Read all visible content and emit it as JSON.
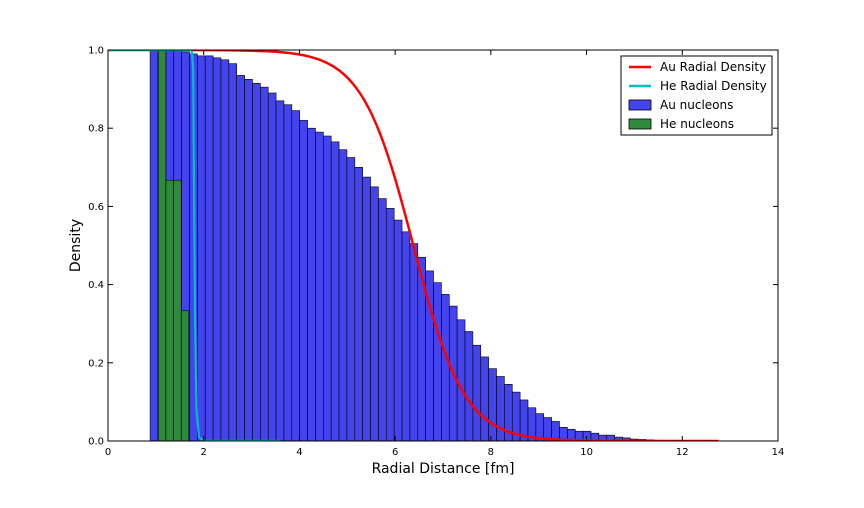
{
  "chart_data": {
    "type": "histogram",
    "title": "",
    "xlabel": "Radial Distance [fm]",
    "ylabel": "Density",
    "xlim": [
      0,
      14
    ],
    "ylim": [
      0,
      1.0
    ],
    "xticks": [
      "0",
      "2",
      "4",
      "6",
      "8",
      "10",
      "12",
      "14"
    ],
    "yticks": [
      "0.0",
      "0.2",
      "0.4",
      "0.6",
      "0.8",
      "1.0"
    ],
    "grid": false,
    "legend_position": "top-right",
    "legend": [
      {
        "label": "Au Radial Density",
        "kind": "line",
        "color": "#ff0000"
      },
      {
        "label": "He Radial Density",
        "kind": "line",
        "color": "#00bfbf"
      },
      {
        "label": "Au nucleons",
        "kind": "patch",
        "color": "#4444ee"
      },
      {
        "label": "He nucleons",
        "kind": "patch",
        "color": "#2e8b3e"
      }
    ],
    "au_hist": {
      "name": "Au nucleons",
      "color": "#4444ee",
      "bin_start": 0.88,
      "bin_width": 0.1645,
      "values": [
        1.0,
        1.0,
        1.0,
        1.0,
        0.995,
        0.99,
        0.985,
        0.985,
        0.98,
        0.975,
        0.965,
        0.935,
        0.925,
        0.915,
        0.905,
        0.89,
        0.87,
        0.86,
        0.845,
        0.82,
        0.8,
        0.79,
        0.78,
        0.765,
        0.745,
        0.725,
        0.7,
        0.675,
        0.65,
        0.62,
        0.595,
        0.565,
        0.535,
        0.505,
        0.47,
        0.435,
        0.405,
        0.375,
        0.345,
        0.31,
        0.28,
        0.245,
        0.215,
        0.185,
        0.165,
        0.145,
        0.125,
        0.105,
        0.085,
        0.07,
        0.06,
        0.05,
        0.035,
        0.03,
        0.025,
        0.025,
        0.02,
        0.015,
        0.015,
        0.01,
        0.008,
        0.005,
        0.004,
        0.003,
        0.002,
        0.001,
        0.001,
        0.001,
        0.0005,
        0.0005,
        0.0005,
        0.0005
      ]
    },
    "he_hist": {
      "name": "He nucleons",
      "color": "#2e8b3e",
      "bin_start": 1.05,
      "bin_width": 0.16,
      "values": [
        1.0,
        0.667,
        0.667,
        0.333
      ]
    },
    "au_density": {
      "name": "Au Radial Density",
      "color": "#ff0000",
      "function": "woods-saxon",
      "R": 6.38,
      "a": 0.535,
      "x_range": [
        0,
        12.76
      ]
    },
    "he_density": {
      "name": "He Radial Density",
      "color": "#00bfbf",
      "points": [
        [
          0,
          1.0
        ],
        [
          1.75,
          1.0
        ],
        [
          1.78,
          0.95
        ],
        [
          1.8,
          0.6
        ],
        [
          1.82,
          0.3
        ],
        [
          1.85,
          0.08
        ],
        [
          1.9,
          0.01
        ],
        [
          2.0,
          0.0
        ],
        [
          3.6,
          0.0
        ]
      ]
    }
  }
}
